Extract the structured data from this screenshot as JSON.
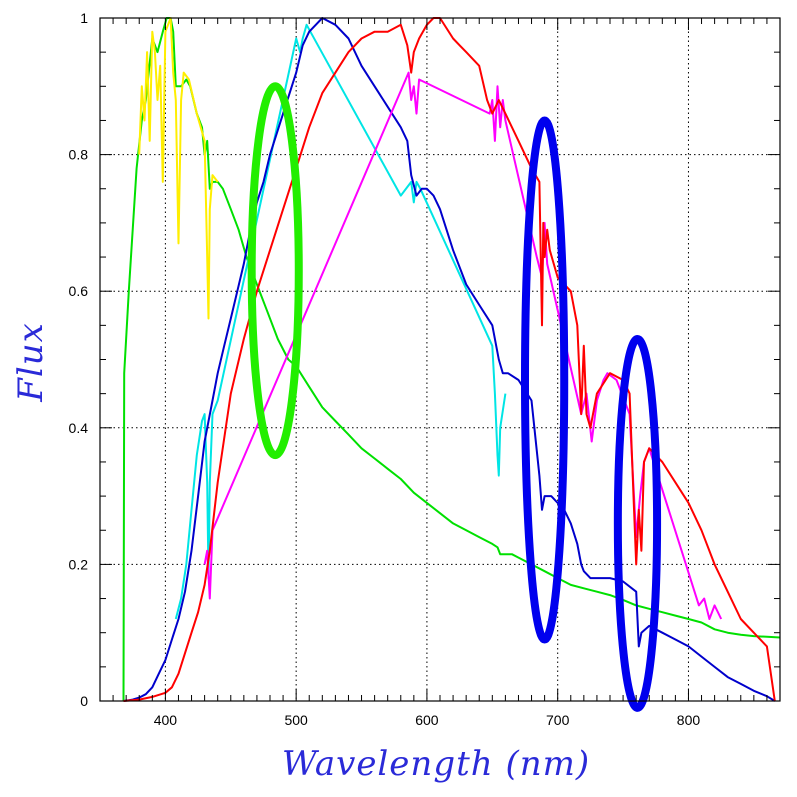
{
  "chart_data": {
    "type": "line",
    "title": "",
    "xlabel": "Wavelength (nm)",
    "ylabel": "Flux",
    "xlim": [
      350,
      870
    ],
    "ylim": [
      0,
      1
    ],
    "x_ticks": [
      400,
      500,
      600,
      700,
      800
    ],
    "y_ticks": [
      0,
      0.2,
      0.4,
      0.6,
      0.8,
      1
    ],
    "y_tick_labels": [
      "0",
      "0.2",
      "0.4",
      "0.6",
      "0.8",
      "1"
    ],
    "grid": true,
    "legend": "none",
    "series": [
      {
        "color": "#00e000",
        "x": [
          368,
          368.5,
          372,
          378,
          382,
          385,
          390,
          394,
          398,
          401,
          404,
          406,
          408,
          412,
          416,
          419,
          424,
          428,
          430,
          432,
          434,
          436,
          440,
          444,
          450,
          456,
          462,
          470,
          478,
          486,
          494,
          500,
          510,
          520,
          530,
          540,
          550,
          560,
          570,
          580,
          590,
          600,
          610,
          620,
          630,
          640,
          650,
          654,
          656,
          660,
          665,
          670,
          680,
          690,
          700,
          710,
          720,
          730,
          740,
          750,
          760,
          770,
          780,
          790,
          800,
          810,
          820,
          830,
          840,
          850,
          860,
          870
        ],
        "y": [
          0,
          0.48,
          0.6,
          0.78,
          0.85,
          0.88,
          0.97,
          0.95,
          0.98,
          1.0,
          1.0,
          0.98,
          0.9,
          0.9,
          0.91,
          0.9,
          0.86,
          0.84,
          0.8,
          0.82,
          0.75,
          0.76,
          0.76,
          0.75,
          0.72,
          0.69,
          0.65,
          0.61,
          0.57,
          0.53,
          0.5,
          0.49,
          0.46,
          0.43,
          0.41,
          0.39,
          0.37,
          0.355,
          0.34,
          0.325,
          0.305,
          0.29,
          0.275,
          0.26,
          0.25,
          0.24,
          0.23,
          0.225,
          0.215,
          0.215,
          0.215,
          0.21,
          0.2,
          0.19,
          0.18,
          0.17,
          0.165,
          0.16,
          0.155,
          0.148,
          0.14,
          0.135,
          0.13,
          0.125,
          0.12,
          0.115,
          0.105,
          0.1,
          0.097,
          0.095,
          0.094,
          0.093
        ]
      },
      {
        "color": "#ffee00",
        "x": [
          380,
          382,
          384,
          386,
          388,
          390,
          392,
          394,
          396,
          398,
          400,
          404,
          406,
          408,
          410,
          412,
          414,
          418,
          424,
          430,
          432,
          433,
          434,
          436,
          440
        ],
        "y": [
          0.8,
          0.9,
          0.85,
          0.95,
          0.82,
          0.98,
          0.95,
          0.88,
          0.93,
          0.76,
          0.98,
          1.0,
          0.92,
          0.88,
          0.67,
          0.88,
          0.92,
          0.91,
          0.86,
          0.82,
          0.65,
          0.56,
          0.72,
          0.77,
          0.76
        ]
      },
      {
        "color": "#00e5e5",
        "x": [
          408,
          412,
          416,
          420,
          424,
          428,
          430,
          432,
          433,
          434,
          436,
          440,
          500,
          503,
          505,
          508,
          580,
          588,
          590,
          592,
          595,
          650,
          652,
          654,
          655,
          656,
          660
        ],
        "y": [
          0.12,
          0.15,
          0.2,
          0.28,
          0.36,
          0.41,
          0.42,
          0.32,
          0.18,
          0.32,
          0.42,
          0.44,
          0.97,
          0.95,
          0.97,
          0.99,
          0.74,
          0.76,
          0.73,
          0.76,
          0.75,
          0.52,
          0.45,
          0.36,
          0.33,
          0.4,
          0.45
        ]
      },
      {
        "color": "#0000cc",
        "x": [
          368,
          375,
          380,
          385,
          390,
          395,
          400,
          405,
          410,
          415,
          420,
          425,
          430,
          436,
          440,
          445,
          450,
          455,
          460,
          465,
          470,
          475,
          480,
          490,
          500,
          505,
          510,
          515,
          520,
          530,
          540,
          550,
          560,
          570,
          580,
          585,
          588,
          592,
          596,
          600,
          605,
          610,
          620,
          630,
          640,
          650,
          655,
          658,
          662,
          670,
          680,
          686,
          688,
          690,
          695,
          700,
          705,
          710,
          715,
          718,
          720,
          725,
          730,
          740,
          750,
          760,
          762,
          764,
          770,
          780,
          790,
          800,
          810,
          820,
          830,
          840,
          850,
          860,
          866
        ],
        "y": [
          0,
          0.002,
          0.005,
          0.01,
          0.02,
          0.04,
          0.06,
          0.09,
          0.12,
          0.16,
          0.22,
          0.3,
          0.38,
          0.44,
          0.48,
          0.52,
          0.56,
          0.6,
          0.64,
          0.69,
          0.73,
          0.76,
          0.8,
          0.86,
          0.92,
          0.96,
          0.98,
          0.99,
          1.0,
          0.99,
          0.97,
          0.93,
          0.9,
          0.87,
          0.84,
          0.82,
          0.77,
          0.74,
          0.75,
          0.75,
          0.74,
          0.72,
          0.66,
          0.61,
          0.58,
          0.55,
          0.5,
          0.48,
          0.48,
          0.47,
          0.44,
          0.33,
          0.28,
          0.3,
          0.3,
          0.29,
          0.28,
          0.26,
          0.23,
          0.2,
          0.19,
          0.18,
          0.18,
          0.18,
          0.175,
          0.16,
          0.08,
          0.1,
          0.11,
          0.1,
          0.09,
          0.08,
          0.065,
          0.05,
          0.035,
          0.025,
          0.015,
          0.007,
          0
        ]
      },
      {
        "color": "#ff00ff",
        "x": [
          430,
          432,
          434,
          436,
          586,
          588,
          590,
          592,
          594,
          648,
          650,
          652,
          654,
          656,
          658,
          660,
          684,
          688,
          690,
          692,
          718,
          722,
          726,
          730,
          735,
          738,
          745,
          755,
          760,
          763,
          766,
          770,
          808,
          812,
          816,
          820,
          825
        ],
        "y": [
          0.2,
          0.22,
          0.15,
          0.25,
          0.92,
          0.88,
          0.9,
          0.86,
          0.91,
          0.86,
          0.88,
          0.82,
          0.9,
          0.84,
          0.88,
          0.85,
          0.65,
          0.62,
          0.7,
          0.64,
          0.42,
          0.45,
          0.38,
          0.44,
          0.47,
          0.48,
          0.47,
          0.42,
          0.24,
          0.3,
          0.35,
          0.37,
          0.14,
          0.15,
          0.12,
          0.14,
          0.12
        ]
      },
      {
        "color": "#ff0000",
        "x": [
          368,
          380,
          390,
          400,
          405,
          410,
          415,
          420,
          425,
          430,
          434,
          440,
          450,
          460,
          470,
          480,
          490,
          500,
          510,
          520,
          530,
          540,
          550,
          560,
          570,
          580,
          585,
          588,
          590,
          594,
          600,
          605,
          610,
          620,
          625,
          630,
          640,
          646,
          650,
          655,
          660,
          670,
          680,
          686,
          688,
          689,
          690,
          692,
          694,
          700,
          710,
          715,
          718,
          720,
          722,
          725,
          730,
          740,
          750,
          755,
          758,
          760,
          762,
          764,
          766,
          770,
          780,
          790,
          800,
          810,
          820,
          830,
          840,
          850,
          860,
          866
        ],
        "y": [
          0,
          0.002,
          0.006,
          0.012,
          0.02,
          0.04,
          0.07,
          0.1,
          0.13,
          0.17,
          0.22,
          0.32,
          0.45,
          0.53,
          0.6,
          0.66,
          0.72,
          0.78,
          0.84,
          0.89,
          0.92,
          0.95,
          0.97,
          0.98,
          0.98,
          0.99,
          0.96,
          0.92,
          0.95,
          0.97,
          0.99,
          1.0,
          1.0,
          0.97,
          0.96,
          0.95,
          0.93,
          0.88,
          0.86,
          0.88,
          0.86,
          0.82,
          0.78,
          0.76,
          0.55,
          0.7,
          0.65,
          0.69,
          0.66,
          0.62,
          0.6,
          0.55,
          0.42,
          0.52,
          0.42,
          0.4,
          0.45,
          0.48,
          0.47,
          0.45,
          0.3,
          0.2,
          0.28,
          0.22,
          0.35,
          0.37,
          0.35,
          0.32,
          0.29,
          0.25,
          0.2,
          0.16,
          0.12,
          0.1,
          0.08,
          0.0
        ]
      }
    ],
    "annotations": [
      {
        "shape": "ellipse",
        "color": "#22ee00",
        "cx": 484,
        "cy": 0.63,
        "rx": 18,
        "ry": 0.27
      },
      {
        "shape": "ellipse",
        "color": "#0000ee",
        "cx": 690,
        "cy": 0.47,
        "rx": 15,
        "ry": 0.38
      },
      {
        "shape": "ellipse",
        "color": "#0000ee",
        "cx": 761,
        "cy": 0.26,
        "rx": 15,
        "ry": 0.27
      }
    ]
  }
}
